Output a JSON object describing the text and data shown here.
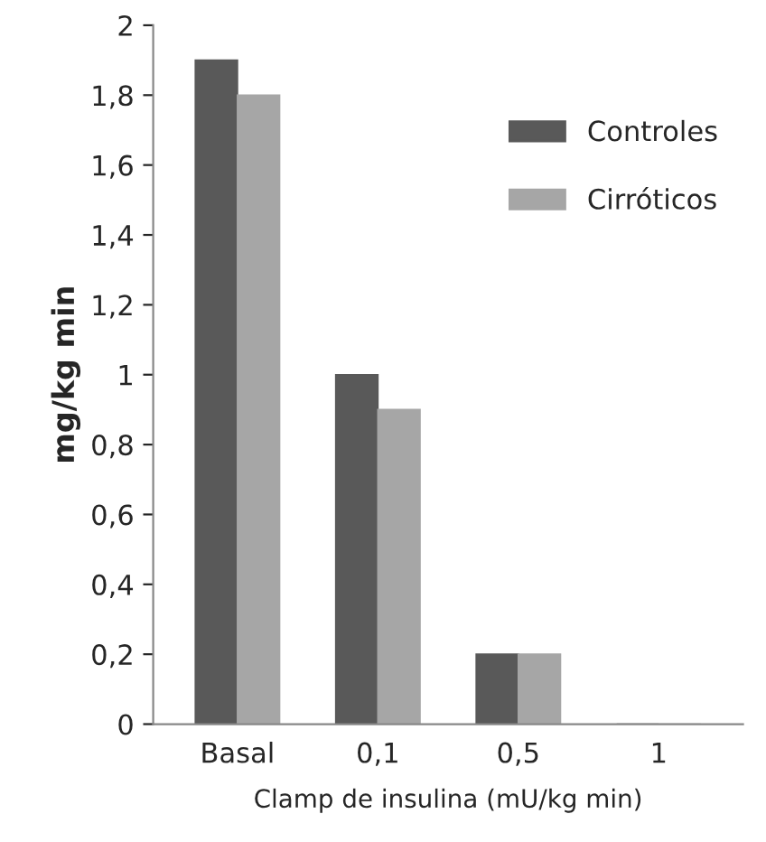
{
  "chart_data": {
    "type": "bar",
    "xlabel": "Clamp de insulina (mU/kg min)",
    "ylabel": "mg/kg min",
    "categories": [
      "Basal",
      "0,1",
      "0,5",
      "1"
    ],
    "series": [
      {
        "name": "Controles",
        "color": "#595959",
        "values": [
          1.9,
          1.0,
          0.2,
          0
        ]
      },
      {
        "name": "Cirróticos",
        "color": "#a6a6a6",
        "values": [
          1.8,
          0.9,
          0.2,
          0
        ]
      }
    ],
    "ylim": [
      0,
      2
    ],
    "yticks": [
      0,
      {
        "value": 0.2,
        "label": "0,2"
      },
      {
        "value": 0.4,
        "label": "0,4"
      },
      {
        "value": 0.6,
        "label": "0,6"
      },
      {
        "value": 0.8,
        "label": "0,8"
      },
      1,
      {
        "value": 1.2,
        "label": "1,2"
      },
      {
        "value": 1.4,
        "label": "1,4"
      },
      {
        "value": 1.6,
        "label": "1,6"
      },
      {
        "value": 1.8,
        "label": "1,8"
      },
      2
    ],
    "grid": false,
    "legend": "top right"
  }
}
